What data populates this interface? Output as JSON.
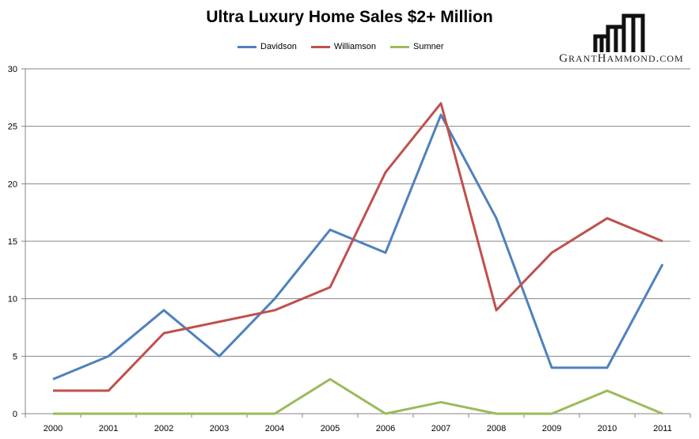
{
  "chart_data": {
    "type": "line",
    "title": "Ultra Luxury Home Sales $2+ Million",
    "categories": [
      "2000",
      "2001",
      "2002",
      "2003",
      "2004",
      "2005",
      "2006",
      "2007",
      "2008",
      "2009",
      "2010",
      "2011"
    ],
    "series": [
      {
        "name": "Davidson",
        "color": "#4F81BD",
        "values": [
          3,
          5,
          9,
          5,
          10,
          16,
          14,
          26,
          17,
          4,
          4,
          13
        ]
      },
      {
        "name": "Williamson",
        "color": "#C0504D",
        "values": [
          2,
          2,
          7,
          8,
          9,
          11,
          21,
          27,
          9,
          14,
          17,
          15
        ]
      },
      {
        "name": "Sumner",
        "color": "#9BBB59",
        "values": [
          0,
          0,
          0,
          0,
          0,
          3,
          0,
          1,
          0,
          0,
          2,
          0
        ]
      }
    ],
    "ylim": [
      0,
      30
    ],
    "yticks": [
      0,
      5,
      10,
      15,
      20,
      25,
      30
    ],
    "grid": true,
    "legend": "top"
  },
  "logo": {
    "text": "GrantHammond.com"
  }
}
